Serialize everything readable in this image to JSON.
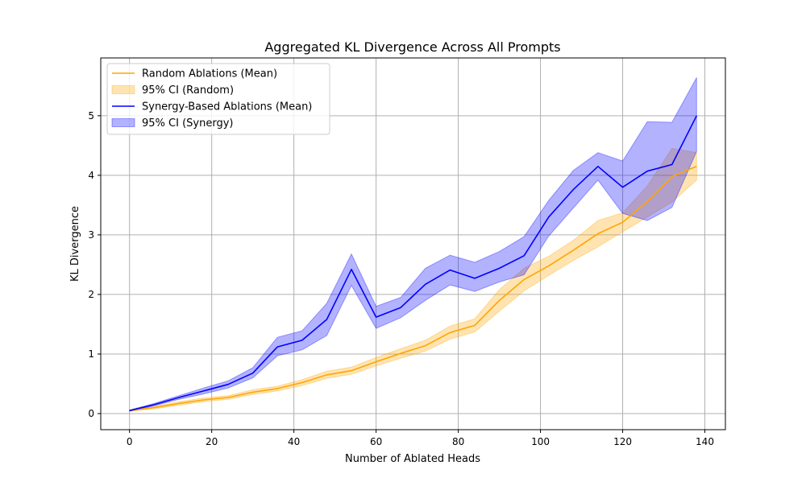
{
  "chart_data": {
    "type": "line",
    "title": "Aggregated KL Divergence Across All Prompts",
    "xlabel": "Number of Ablated Heads",
    "ylabel": "KL Divergence",
    "xlim": [
      -7,
      145
    ],
    "ylim": [
      -0.27,
      5.97
    ],
    "x_ticks": [
      0,
      20,
      40,
      60,
      80,
      100,
      120,
      140
    ],
    "y_ticks": [
      0,
      1,
      2,
      3,
      4,
      5
    ],
    "grid": true,
    "legend_position": "top-left",
    "x": [
      0,
      6,
      12,
      18,
      24,
      30,
      36,
      42,
      48,
      54,
      60,
      66,
      72,
      78,
      84,
      90,
      96,
      102,
      108,
      114,
      120,
      126,
      132,
      138
    ],
    "series": [
      {
        "name": "Random Ablations (Mean)",
        "color": "#ffa500",
        "values": [
          0.05,
          0.1,
          0.17,
          0.23,
          0.27,
          0.36,
          0.42,
          0.52,
          0.65,
          0.72,
          0.87,
          1.01,
          1.14,
          1.36,
          1.48,
          1.9,
          2.25,
          2.48,
          2.74,
          3.02,
          3.21,
          3.56,
          3.98,
          4.15
        ],
        "band_name": "95% CI (Random)",
        "band_color": "#ffa500",
        "band_lower": [
          0.04,
          0.08,
          0.14,
          0.2,
          0.24,
          0.32,
          0.38,
          0.47,
          0.59,
          0.66,
          0.8,
          0.93,
          1.05,
          1.25,
          1.37,
          1.72,
          2.06,
          2.32,
          2.57,
          2.8,
          3.05,
          3.3,
          3.55,
          3.92
        ],
        "band_upper": [
          0.06,
          0.12,
          0.2,
          0.26,
          0.3,
          0.4,
          0.46,
          0.57,
          0.71,
          0.78,
          0.94,
          1.09,
          1.23,
          1.47,
          1.59,
          2.08,
          2.44,
          2.64,
          2.91,
          3.24,
          3.37,
          3.82,
          4.45,
          4.38
        ]
      },
      {
        "name": "Synergy-Based Ablations (Mean)",
        "color": "#0000ff",
        "values": [
          0.05,
          0.15,
          0.27,
          0.38,
          0.49,
          0.68,
          1.12,
          1.23,
          1.58,
          2.42,
          1.62,
          1.78,
          2.17,
          2.41,
          2.27,
          2.44,
          2.65,
          3.3,
          3.76,
          4.15,
          3.8,
          4.07,
          4.18,
          5.0
        ],
        "band_name": "95% CI (Synergy)",
        "band_color": "#0000ff",
        "band_lower": [
          0.04,
          0.13,
          0.24,
          0.33,
          0.43,
          0.6,
          0.97,
          1.07,
          1.31,
          2.15,
          1.43,
          1.61,
          1.9,
          2.16,
          2.05,
          2.21,
          2.33,
          2.98,
          3.45,
          3.92,
          3.36,
          3.24,
          3.46,
          4.4
        ],
        "band_upper": [
          0.06,
          0.17,
          0.3,
          0.43,
          0.55,
          0.77,
          1.28,
          1.39,
          1.85,
          2.68,
          1.8,
          1.95,
          2.44,
          2.66,
          2.54,
          2.72,
          2.97,
          3.58,
          4.08,
          4.38,
          4.24,
          4.9,
          4.89,
          5.64
        ]
      }
    ]
  }
}
